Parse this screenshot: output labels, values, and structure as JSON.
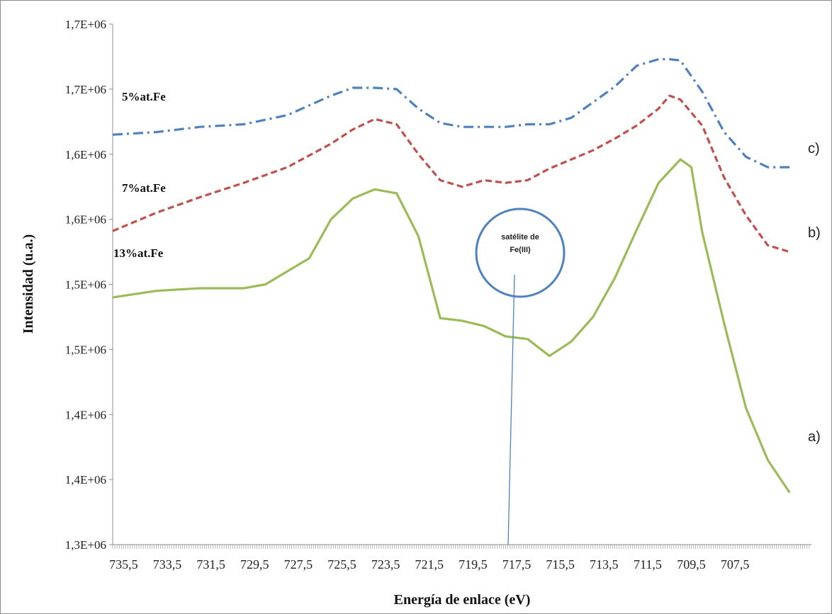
{
  "chart_data": {
    "type": "line",
    "xlabel": "Energía de enlace  (eV)",
    "ylabel": "Intensidad (u.a.)",
    "x_reversed": true,
    "xlim": [
      736,
      704
    ],
    "x_ticks": [
      "735,5",
      "733,5",
      "731,5",
      "729,5",
      "727,5",
      "725,5",
      "723,5",
      "721,5",
      "719,5",
      "717,5",
      "715,5",
      "713,5",
      "711,5",
      "709,5",
      "707,5"
    ],
    "y_tick_labels": [
      "1,3E+06",
      "1,4E+06",
      "1,4E+06",
      "1,5E+06",
      "1,5E+06",
      "1,6E+06",
      "1,6E+06",
      "1,7E+06",
      "1,7E+06"
    ],
    "ylim": [
      1300000,
      1700000
    ],
    "grid": false,
    "series": [
      {
        "name": "5%at.Fe",
        "tag": "c)",
        "color": "#4f81bd",
        "style": "dash-dot",
        "x": [
          736,
          734,
          732,
          730,
          728,
          726,
          725,
          724,
          723,
          722,
          721,
          720,
          719,
          718,
          717,
          716,
          715,
          714,
          713,
          712,
          711,
          710.5,
          710,
          709,
          708,
          707,
          706,
          705
        ],
        "y": [
          1615000,
          1617000,
          1621000,
          1623000,
          1630000,
          1645000,
          1651000,
          1651000,
          1650000,
          1635000,
          1624000,
          1621000,
          1621000,
          1621000,
          1623000,
          1623000,
          1628000,
          1640000,
          1652000,
          1668000,
          1673000,
          1673000,
          1672000,
          1648000,
          1617000,
          1598000,
          1590000,
          1590000
        ]
      },
      {
        "name": "7%at.Fe",
        "tag": "b)",
        "color": "#c0504d",
        "style": "dashed",
        "x": [
          736,
          734,
          732,
          730,
          728,
          726,
          725,
          724,
          723,
          722,
          721,
          720,
          719,
          718,
          717,
          716,
          715,
          714,
          713,
          712,
          711,
          710.5,
          710,
          709,
          708,
          707,
          706,
          705
        ],
        "y": [
          1541000,
          1555000,
          1567000,
          1578000,
          1590000,
          1608000,
          1619000,
          1627000,
          1623000,
          1600000,
          1580000,
          1575000,
          1580000,
          1578000,
          1580000,
          1589000,
          1596000,
          1603000,
          1612000,
          1622000,
          1635000,
          1645000,
          1642000,
          1622000,
          1582000,
          1553000,
          1530000,
          1525000
        ]
      },
      {
        "name": "13%at.Fe",
        "tag": "a)",
        "color": "#9bbb59",
        "style": "solid",
        "x": [
          736,
          734,
          732,
          730,
          729,
          727,
          726,
          725,
          724,
          723,
          722,
          721,
          720,
          719,
          718,
          717,
          716,
          715,
          714,
          713,
          712,
          711,
          710,
          709.5,
          709,
          708,
          707,
          706,
          705
        ],
        "y": [
          1490000,
          1495000,
          1497000,
          1497000,
          1500000,
          1520000,
          1550000,
          1566000,
          1573000,
          1570000,
          1537000,
          1474000,
          1472000,
          1468000,
          1460000,
          1458000,
          1445000,
          1456000,
          1475000,
          1505000,
          1542000,
          1578000,
          1596000,
          1590000,
          1540000,
          1470000,
          1405000,
          1365000,
          1340000
        ]
      }
    ],
    "annotation": {
      "line1": "satélite de",
      "line2": "Fe(III)",
      "color": "#4f81bd"
    }
  }
}
